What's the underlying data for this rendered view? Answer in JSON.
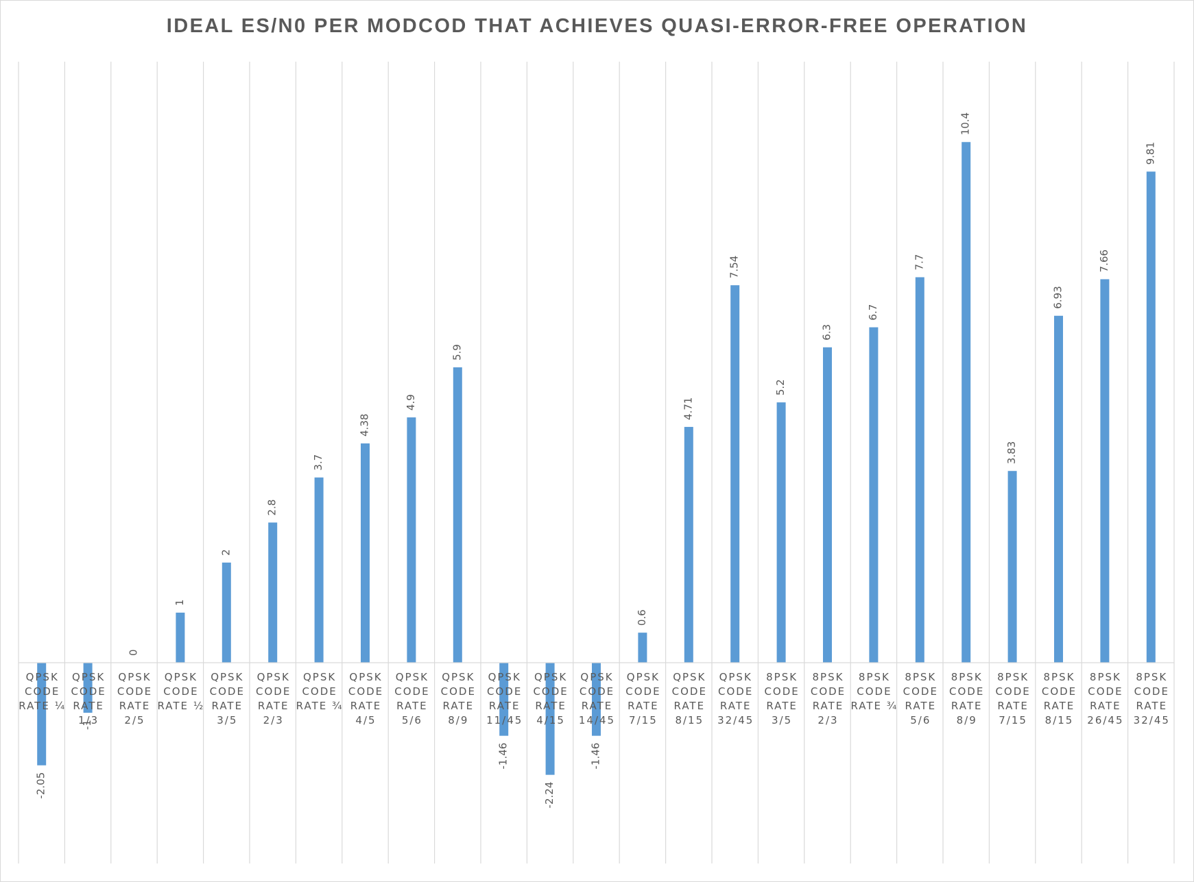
{
  "chart_data": {
    "type": "bar",
    "title": "IDEAL ES/N0 PER MODCOD THAT ACHIEVES QUASI-ERROR-FREE OPERATION",
    "xlabel": "",
    "ylabel": "",
    "ylim": [
      -3.9,
      12.0
    ],
    "grid": "vertical",
    "legend": "none",
    "bar_color": "#5b9bd5",
    "categories": [
      [
        "QPSK",
        "CODE",
        "RATE ¼"
      ],
      [
        "QPSK",
        "CODE",
        "RATE",
        "1/3"
      ],
      [
        "QPSK",
        "CODE",
        "RATE",
        "2/5"
      ],
      [
        "QPSK",
        "CODE",
        "RATE ½"
      ],
      [
        "QPSK",
        "CODE",
        "RATE",
        "3/5"
      ],
      [
        "QPSK",
        "CODE",
        "RATE",
        "2/3"
      ],
      [
        "QPSK",
        "CODE",
        "RATE ¾"
      ],
      [
        "QPSK",
        "CODE",
        "RATE",
        "4/5"
      ],
      [
        "QPSK",
        "CODE",
        "RATE",
        "5/6"
      ],
      [
        "QPSK",
        "CODE",
        "RATE",
        "8/9"
      ],
      [
        "QPSK",
        "CODE",
        "RATE",
        "11/45"
      ],
      [
        "QPSK",
        "CODE",
        "RATE",
        "4/15"
      ],
      [
        "QPSK",
        "CODE",
        "RATE",
        "14/45"
      ],
      [
        "QPSK",
        "CODE",
        "RATE",
        "7/15"
      ],
      [
        "QPSK",
        "CODE",
        "RATE",
        "8/15"
      ],
      [
        "QPSK",
        "CODE",
        "RATE",
        "32/45"
      ],
      [
        "8PSK",
        "CODE",
        "RATE",
        "3/5"
      ],
      [
        "8PSK",
        "CODE",
        "RATE",
        "2/3"
      ],
      [
        "8PSK",
        "CODE",
        "RATE ¾"
      ],
      [
        "8PSK",
        "CODE",
        "RATE",
        "5/6"
      ],
      [
        "8PSK",
        "CODE",
        "RATE",
        "8/9"
      ],
      [
        "8PSK",
        "CODE",
        "RATE",
        "7/15"
      ],
      [
        "8PSK",
        "CODE",
        "RATE",
        "8/15"
      ],
      [
        "8PSK",
        "CODE",
        "RATE",
        "26/45"
      ],
      [
        "8PSK",
        "CODE",
        "RATE",
        "32/45"
      ]
    ],
    "values": [
      -2.05,
      -1,
      0,
      1,
      2,
      2.8,
      3.7,
      4.38,
      4.9,
      5.9,
      -1.46,
      -2.24,
      -1.46,
      0.6,
      4.71,
      7.54,
      5.2,
      6.3,
      6.7,
      7.7,
      10.4,
      3.83,
      6.93,
      7.66,
      9.81
    ],
    "data_labels": [
      "-2.05",
      "-1",
      "0",
      "1",
      "2",
      "2.8",
      "3.7",
      "4.38",
      "4.9",
      "5.9",
      "-1.46",
      "-2.24",
      "-1.46",
      "0.6",
      "4.71",
      "7.54",
      "5.2",
      "6.3",
      "6.7",
      "7.7",
      "10.4",
      "3.83",
      "6.93",
      "7.66",
      "9.81"
    ]
  }
}
